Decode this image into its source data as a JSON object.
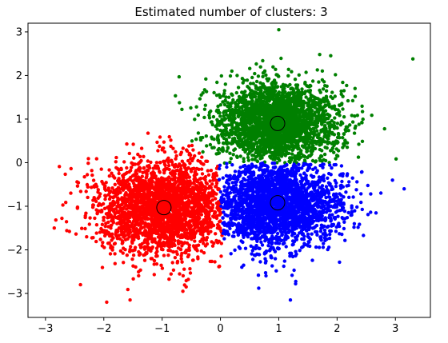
{
  "chart_data": {
    "type": "scatter",
    "title": "Estimated number of clusters: 3",
    "xlabel": "",
    "ylabel": "",
    "xlim": [
      -3.3,
      3.6
    ],
    "ylim": [
      -3.55,
      3.2
    ],
    "x_ticks": [
      -3,
      -2,
      -1,
      0,
      1,
      2,
      3
    ],
    "y_ticks": [
      -3,
      -2,
      -1,
      0,
      1,
      2,
      3
    ],
    "grid": false,
    "legend": "none",
    "clusters": [
      {
        "color": "#ff0000",
        "center": [
          -0.97,
          -1.03
        ],
        "spread": [
          0.58,
          0.55
        ],
        "count": 2600
      },
      {
        "color": "#008000",
        "center": [
          0.98,
          0.9
        ],
        "spread": [
          0.52,
          0.46
        ],
        "count": 2600
      },
      {
        "color": "#0000ff",
        "center": [
          0.98,
          -0.92
        ],
        "spread": [
          0.55,
          0.52
        ],
        "count": 2400
      }
    ],
    "cluster_centers": [
      [
        -0.97,
        -1.03
      ],
      [
        0.98,
        0.9
      ],
      [
        0.98,
        -0.92
      ]
    ],
    "outliers": [
      {
        "color": "#008000",
        "x": 3.3,
        "y": 2.38
      },
      {
        "color": "#008000",
        "x": 1.0,
        "y": 3.05
      },
      {
        "color": "#008000",
        "x": -0.3,
        "y": 1.6
      },
      {
        "color": "#ff0000",
        "x": -1.95,
        "y": -3.2
      },
      {
        "color": "#ff0000",
        "x": -1.55,
        "y": -3.15
      },
      {
        "color": "#ff0000",
        "x": -2.4,
        "y": -2.8
      },
      {
        "color": "#ff0000",
        "x": -2.85,
        "y": -1.5
      },
      {
        "color": "#0000ff",
        "x": 1.2,
        "y": -3.15
      },
      {
        "color": "#0000ff",
        "x": 3.15,
        "y": -0.6
      },
      {
        "color": "#0000ff",
        "x": 2.95,
        "y": -0.4
      }
    ]
  }
}
